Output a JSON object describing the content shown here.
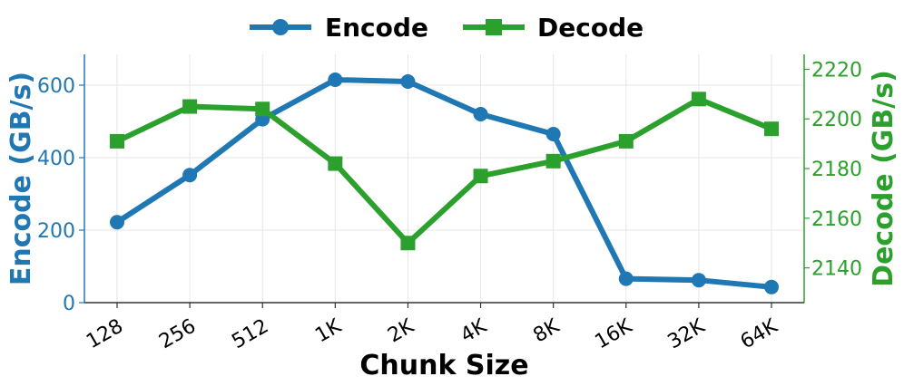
{
  "chart_data": {
    "type": "line",
    "categories": [
      "128",
      "256",
      "512",
      "1K",
      "2K",
      "4K",
      "8K",
      "16K",
      "32K",
      "64K"
    ],
    "xlabel": "Chunk Size",
    "series": [
      {
        "name": "Encode",
        "axis": "left",
        "color": "#1f77b4",
        "marker": "circle",
        "values": [
          222,
          352,
          506,
          615,
          610,
          520,
          465,
          66,
          62,
          43
        ]
      },
      {
        "name": "Decode",
        "axis": "right",
        "color": "#2ca02c",
        "marker": "square",
        "values": [
          2191,
          2205,
          2204,
          2182,
          2150,
          2177,
          2183,
          2191,
          2208,
          2196
        ]
      }
    ],
    "y_left": {
      "label": "Encode (GB/s)",
      "range": [
        0,
        685
      ],
      "ticks": [
        0,
        200,
        400,
        600
      ],
      "color": "#1f77b4"
    },
    "y_right": {
      "label": "Decode (GB/s)",
      "range": [
        2126,
        2226
      ],
      "ticks": [
        2140,
        2160,
        2180,
        2200,
        2220
      ],
      "color": "#2ca02c"
    },
    "grid": true,
    "legend_position": "top-center"
  }
}
